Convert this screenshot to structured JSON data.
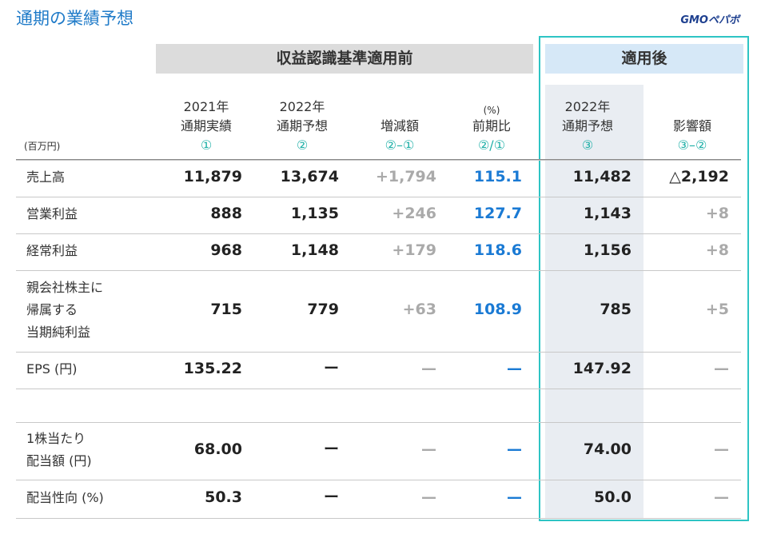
{
  "header": {
    "title": "通期の業績予想",
    "logo": "GMOペパボ"
  },
  "table": {
    "unit": "(百万円)",
    "group_headers": [
      "収益認識基準適用前",
      "適用後"
    ],
    "columns": [
      {
        "lines": [
          "2021年",
          "通期実績",
          "①"
        ]
      },
      {
        "lines": [
          "2022年",
          "通期予想",
          "②"
        ]
      },
      {
        "lines": [
          "増減額",
          "②–①"
        ]
      },
      {
        "lines": [
          "(%)",
          "前期比",
          "②/①"
        ]
      },
      {
        "lines": [
          "2022年",
          "通期予想",
          "③"
        ]
      },
      {
        "lines": [
          "影響額",
          "③–②"
        ]
      }
    ],
    "rows": [
      {
        "label": [
          "売上高"
        ],
        "cells": [
          "11,879",
          "13,674",
          "+1,794",
          "115.1",
          "11,482",
          "△2,192"
        ]
      },
      {
        "label": [
          "営業利益"
        ],
        "cells": [
          "888",
          "1,135",
          "+246",
          "127.7",
          "1,143",
          "+8"
        ]
      },
      {
        "label": [
          "経常利益"
        ],
        "cells": [
          "968",
          "1,148",
          "+179",
          "118.6",
          "1,156",
          "+8"
        ]
      },
      {
        "label": [
          "親会社株主に",
          "帰属する",
          "当期純利益"
        ],
        "cells": [
          "715",
          "779",
          "+63",
          "108.9",
          "785",
          "+5"
        ]
      },
      {
        "label": [
          "EPS (円)"
        ],
        "cells": [
          "135.22",
          "ー",
          "—",
          "—",
          "147.92",
          "—"
        ]
      },
      {
        "label": [
          "1株当たり",
          "配当額 (円)"
        ],
        "cells": [
          "68.00",
          "ー",
          "—",
          "—",
          "74.00",
          "—"
        ]
      },
      {
        "label": [
          "配当性向 (%)"
        ],
        "cells": [
          "50.3",
          "ー",
          "—",
          "—",
          "50.0",
          "—"
        ]
      }
    ]
  }
}
